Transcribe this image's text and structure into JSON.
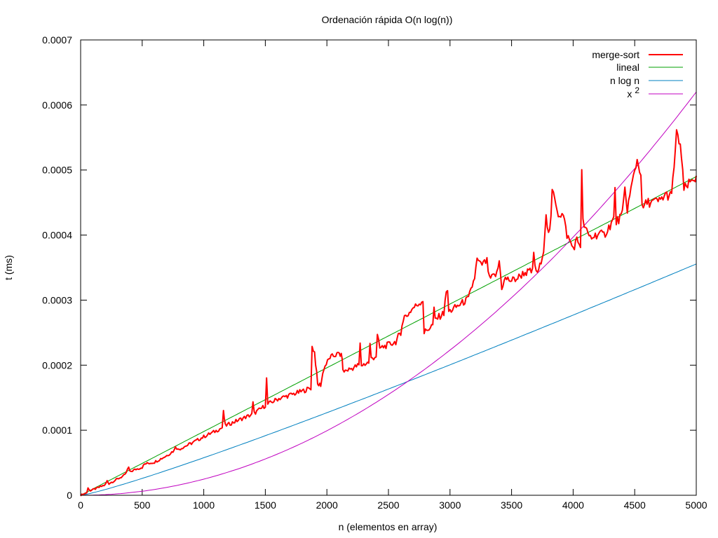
{
  "chart_data": {
    "type": "line",
    "title": "Ordenación rápida O(n log(n))",
    "xlabel": "n (elementos en array)",
    "ylabel": "t (ms)",
    "xlim": [
      0,
      5000
    ],
    "ylim": [
      0,
      0.0007
    ],
    "xticks": [
      "0",
      "500",
      "1000",
      "1500",
      "2000",
      "2500",
      "3000",
      "3500",
      "4000",
      "4500",
      "5000"
    ],
    "yticks": [
      "0",
      "0.0001",
      "0.0002",
      "0.0003",
      "0.0004",
      "0.0005",
      "0.0006",
      "0.0007"
    ],
    "legend_position": "top-right",
    "series": [
      {
        "name": "merge-sort",
        "label_main": "merge-sort",
        "color": "#ff0000",
        "points": [
          [
            0,
            0.0
          ],
          [
            50,
            4e-06
          ],
          [
            60,
            1.1e-05
          ],
          [
            80,
            7e-06
          ],
          [
            200,
            1.6e-05
          ],
          [
            215,
            2.2e-05
          ],
          [
            230,
            1.8e-05
          ],
          [
            360,
            3.1e-05
          ],
          [
            390,
            4.3e-05
          ],
          [
            400,
            3.6e-05
          ],
          [
            450,
            4e-05
          ],
          [
            500,
            4.3e-05
          ],
          [
            520,
            4.8e-05
          ],
          [
            600,
            5.1e-05
          ],
          [
            700,
            6.1e-05
          ],
          [
            760,
            6.9e-05
          ],
          [
            770,
            7.6e-05
          ],
          [
            790,
            7e-05
          ],
          [
            900,
            8e-05
          ],
          [
            1000,
            9e-05
          ],
          [
            1100,
            9.9e-05
          ],
          [
            1150,
            0.000104
          ],
          [
            1160,
            0.000128
          ],
          [
            1175,
            0.000107
          ],
          [
            1300,
            0.000117
          ],
          [
            1390,
            0.000124
          ],
          [
            1400,
            0.000142
          ],
          [
            1410,
            0.000126
          ],
          [
            1500,
            0.000138
          ],
          [
            1510,
            0.000179
          ],
          [
            1520,
            0.00014
          ],
          [
            1600,
            0.000148
          ],
          [
            1800,
            0.00016
          ],
          [
            1870,
            0.000165
          ],
          [
            1880,
            0.000228
          ],
          [
            1900,
            0.00022
          ],
          [
            1925,
            0.00017
          ],
          [
            1950,
            0.00017
          ],
          [
            1975,
            0.000195
          ],
          [
            2025,
            0.000212
          ],
          [
            2100,
            0.000218
          ],
          [
            2125,
            0.000212
          ],
          [
            2130,
            0.00019
          ],
          [
            2200,
            0.000195
          ],
          [
            2260,
            0.0002
          ],
          [
            2270,
            0.000232
          ],
          [
            2280,
            0.0002
          ],
          [
            2340,
            0.000204
          ],
          [
            2350,
            0.000232
          ],
          [
            2360,
            0.00021
          ],
          [
            2400,
            0.000214
          ],
          [
            2410,
            0.000245
          ],
          [
            2430,
            0.000226
          ],
          [
            2560,
            0.000236
          ],
          [
            2580,
            0.000244
          ],
          [
            2600,
            0.000246
          ],
          [
            2610,
            0.000265
          ],
          [
            2630,
            0.000275
          ],
          [
            2650,
            0.000276
          ],
          [
            2700,
            0.000288
          ],
          [
            2750,
            0.000295
          ],
          [
            2780,
            0.0003
          ],
          [
            2790,
            0.00025
          ],
          [
            2860,
            0.000262
          ],
          [
            2870,
            0.000285
          ],
          [
            2880,
            0.00027
          ],
          [
            2950,
            0.00028
          ],
          [
            2960,
            0.000302
          ],
          [
            2980,
            0.000315
          ],
          [
            2990,
            0.000282
          ],
          [
            3150,
            0.000302
          ],
          [
            3200,
            0.000335
          ],
          [
            3220,
            0.000362
          ],
          [
            3250,
            0.000354
          ],
          [
            3300,
            0.00036
          ],
          [
            3320,
            0.000332
          ],
          [
            3380,
            0.00034
          ],
          [
            3400,
            0.00036
          ],
          [
            3420,
            0.00032
          ],
          [
            3450,
            0.000333
          ],
          [
            3500,
            0.00033
          ],
          [
            3550,
            0.000334
          ],
          [
            3600,
            0.000342
          ],
          [
            3670,
            0.000344
          ],
          [
            3680,
            0.000372
          ],
          [
            3700,
            0.00034
          ],
          [
            3750,
            0.00036
          ],
          [
            3760,
            0.00038
          ],
          [
            3780,
            0.000434
          ],
          [
            3800,
            0.0004
          ],
          [
            3820,
            0.000423
          ],
          [
            3830,
            0.000468
          ],
          [
            3860,
            0.00045
          ],
          [
            3880,
            0.000432
          ],
          [
            3900,
            0.000432
          ],
          [
            3920,
            0.00043
          ],
          [
            3950,
            0.0004
          ],
          [
            4000,
            0.00038
          ],
          [
            4030,
            0.000392
          ],
          [
            4060,
            0.000385
          ],
          [
            4070,
            0.000497
          ],
          [
            4080,
            0.00042
          ],
          [
            4120,
            0.0004
          ],
          [
            4150,
            0.000396
          ],
          [
            4200,
            0.000402
          ],
          [
            4250,
            0.0004
          ],
          [
            4300,
            0.000415
          ],
          [
            4330,
            0.000425
          ],
          [
            4340,
            0.00047
          ],
          [
            4350,
            0.00042
          ],
          [
            4400,
            0.000431
          ],
          [
            4420,
            0.00047
          ],
          [
            4440,
            0.00044
          ],
          [
            4500,
            0.0005
          ],
          [
            4520,
            0.000515
          ],
          [
            4550,
            0.000495
          ],
          [
            4560,
            0.00044
          ],
          [
            4600,
            0.00045
          ],
          [
            4700,
            0.000452
          ],
          [
            4750,
            0.000462
          ],
          [
            4800,
            0.00046
          ],
          [
            4840,
            0.000555
          ],
          [
            4870,
            0.00054
          ],
          [
            4900,
            0.00047
          ],
          [
            4950,
            0.00048
          ],
          [
            4975,
            0.000488
          ],
          [
            5000,
            0.000486
          ]
        ]
      },
      {
        "name": "lineal",
        "label_main": "lineal",
        "color": "#00a000",
        "formula": "9.8e-8 * n"
      },
      {
        "name": "n log n",
        "label_main": "n log n",
        "color": "#0080c0",
        "formula": "8.35e-9 * n * ln(n)"
      },
      {
        "name": "x^2",
        "label_main": "x",
        "label_sup": "2",
        "color": "#c000c0",
        "formula": "2.48e-11 * n^2"
      }
    ]
  }
}
